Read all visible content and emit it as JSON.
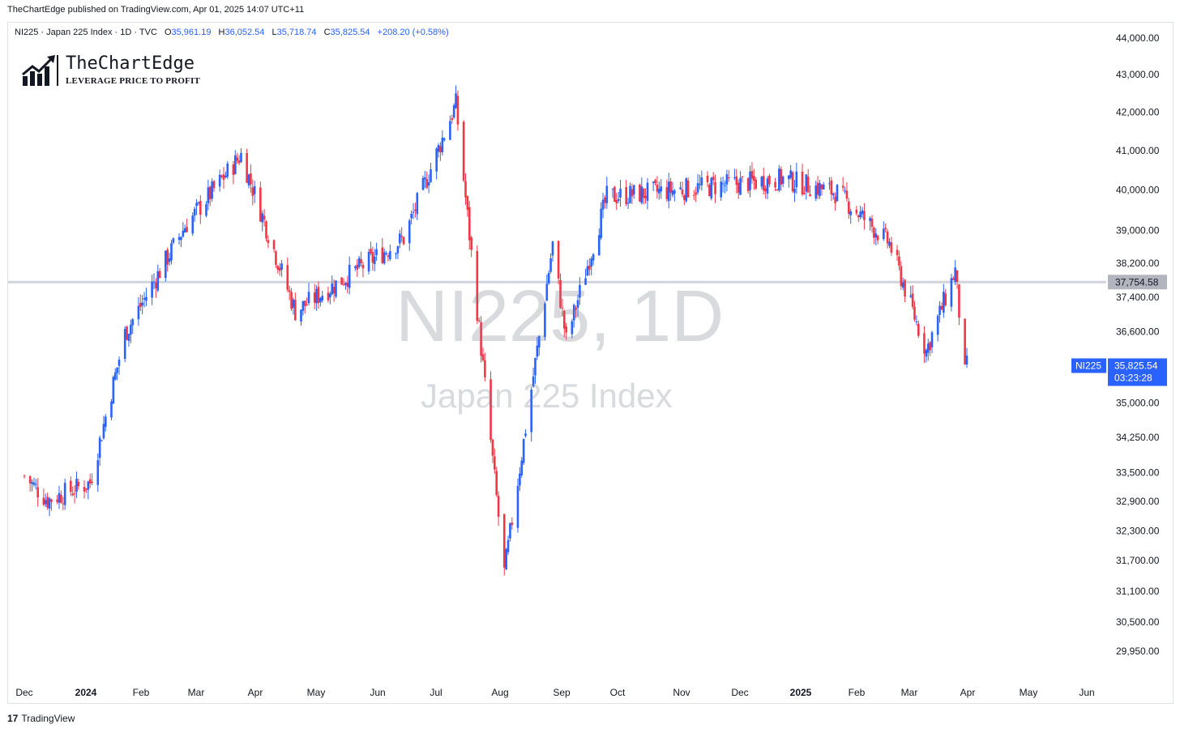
{
  "header": {
    "publisher": "TheChartEdge published on TradingView.com, Apr 01, 2025 14:07 UTC+11"
  },
  "legend": {
    "symbol": "NI225 · Japan 225 Index · 1D · TVC",
    "open_label": "O",
    "open": "35,961.19",
    "high_label": "H",
    "high": "36,052.54",
    "low_label": "L",
    "low": "35,718.74",
    "close_label": "C",
    "close": "35,825.54",
    "change": "+208.20 (+0.58%)"
  },
  "brand": {
    "title": "TheChartEdge",
    "tagline": "LEVERAGE PRICE TO PROFIT"
  },
  "watermark": {
    "symbol": "NI225, 1D",
    "name": "Japan 225 Index"
  },
  "footer": {
    "label": "TradingView",
    "logo_glyph": "17"
  },
  "colors": {
    "up": "#2962ff",
    "down": "#f23645",
    "level_line": "#d1d4dc",
    "tag_bg": "#2962ff",
    "level_tag_bg": "#b2b5be"
  },
  "chart_data": {
    "type": "candlestick",
    "symbol": "NI225",
    "interval": "1D",
    "y_scale": "log",
    "ylim": [
      29500,
      44500
    ],
    "y_ticks": [
      44000,
      43000,
      42000,
      41000,
      40000,
      39000,
      38200,
      37400,
      36600,
      35000,
      34250,
      33500,
      32900,
      32300,
      31700,
      31100,
      30500,
      29950
    ],
    "y_tick_labels": [
      "44,000.00",
      "43,000.00",
      "42,000.00",
      "41,000.00",
      "40,000.00",
      "39,000.00",
      "38,200.00",
      "37,400.00",
      "36,600.00",
      "35,000.00",
      "34,250.00",
      "33,500.00",
      "32,900.00",
      "32,300.00",
      "31,700.00",
      "31,100.00",
      "30,500.00",
      "29,950.00"
    ],
    "x_labels": [
      {
        "label": "Dec",
        "bold": false
      },
      {
        "label": "2024",
        "bold": true
      },
      {
        "label": "Feb",
        "bold": false
      },
      {
        "label": "Mar",
        "bold": false
      },
      {
        "label": "Apr",
        "bold": false
      },
      {
        "label": "May",
        "bold": false
      },
      {
        "label": "Jun",
        "bold": false
      },
      {
        "label": "Jul",
        "bold": false
      },
      {
        "label": "Aug",
        "bold": false
      },
      {
        "label": "Sep",
        "bold": false
      },
      {
        "label": "Oct",
        "bold": false
      },
      {
        "label": "Nov",
        "bold": false
      },
      {
        "label": "Dec",
        "bold": false
      },
      {
        "label": "2025",
        "bold": true
      },
      {
        "label": "Feb",
        "bold": false
      },
      {
        "label": "Mar",
        "bold": false
      },
      {
        "label": "Apr",
        "bold": false
      },
      {
        "label": "May",
        "bold": false
      },
      {
        "label": "Jun",
        "bold": false
      }
    ],
    "horizontal_level": {
      "value": 37754.58,
      "label": "37,754.58"
    },
    "last_price": {
      "value": 35825.54,
      "label": "NI225",
      "price": "35,825.54",
      "countdown": "03:23:28"
    },
    "key_closes": [
      {
        "date": "2023-12-01",
        "close": 33430
      },
      {
        "date": "2023-12-13",
        "close": 32926
      },
      {
        "date": "2024-01-04",
        "close": 33290
      },
      {
        "date": "2024-01-22",
        "close": 36550
      },
      {
        "date": "2024-02-22",
        "close": 39100
      },
      {
        "date": "2024-03-22",
        "close": 40890
      },
      {
        "date": "2024-04-19",
        "close": 37070
      },
      {
        "date": "2024-06-14",
        "close": 38800
      },
      {
        "date": "2024-07-11",
        "close": 42220
      },
      {
        "date": "2024-08-05",
        "close": 31460
      },
      {
        "date": "2024-08-30",
        "close": 38650
      },
      {
        "date": "2024-09-06",
        "close": 36390
      },
      {
        "date": "2024-09-27",
        "close": 39830
      },
      {
        "date": "2024-10-15",
        "close": 39910
      },
      {
        "date": "2024-12-27",
        "close": 40280
      },
      {
        "date": "2025-01-24",
        "close": 39930
      },
      {
        "date": "2025-02-20",
        "close": 38680
      },
      {
        "date": "2025-03-11",
        "close": 36160
      },
      {
        "date": "2025-03-26",
        "close": 38030
      },
      {
        "date": "2025-03-31",
        "close": 35620
      },
      {
        "date": "2025-04-01",
        "close": 35825.54
      }
    ]
  }
}
